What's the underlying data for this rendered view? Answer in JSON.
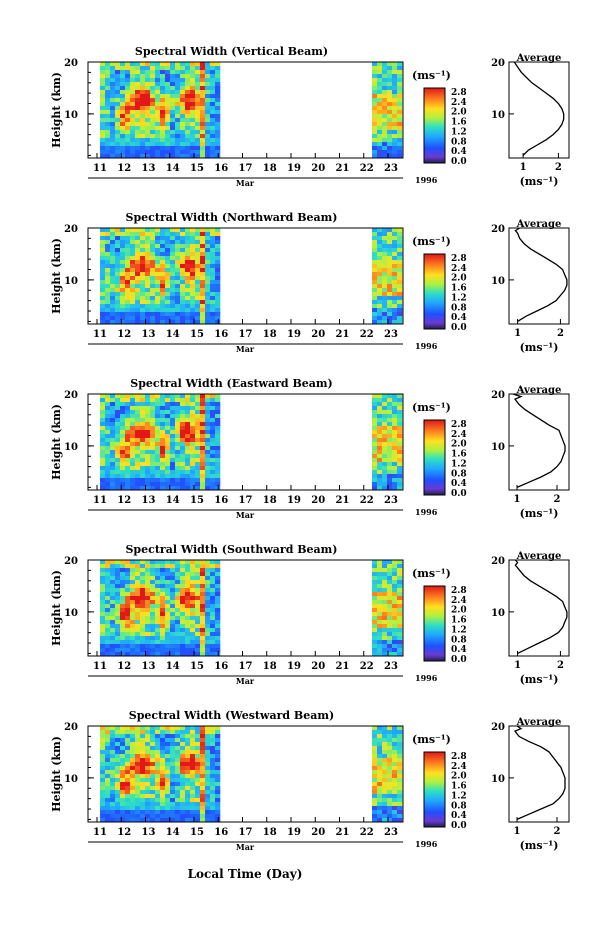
{
  "figure": {
    "xlabel": "Local Time (Day)",
    "month_label": "Mar",
    "year_label": "1996"
  },
  "chart_data": [
    {
      "type": "heatmap",
      "title": "Spectral Width (Vertical Beam)",
      "ylabel": "Height (km)",
      "x_ticks": [
        "11",
        "12",
        "13",
        "14",
        "15",
        "16",
        "17",
        "18",
        "19",
        "20",
        "21",
        "22",
        "23"
      ],
      "y_ticks": [
        "20",
        "10"
      ],
      "colorbar_label": "(ms⁻¹)",
      "colorbar_ticks": [
        "2.8",
        "2.4",
        "2.0",
        "1.6",
        "1.2",
        "0.8",
        "0.4",
        "0.0"
      ],
      "average": {
        "title": "Average",
        "xlabel": "(ms⁻¹)",
        "x_ticks": [
          "1",
          "2"
        ],
        "y_ticks": [
          "20",
          "10"
        ],
        "xlim": [
          0.6,
          2.3
        ],
        "ylim": [
          1.5,
          20
        ],
        "profile": [
          [
            1.0,
            2
          ],
          [
            1.15,
            3
          ],
          [
            1.4,
            4
          ],
          [
            1.65,
            5
          ],
          [
            1.85,
            6
          ],
          [
            2.0,
            7
          ],
          [
            2.1,
            8
          ],
          [
            2.15,
            9
          ],
          [
            2.15,
            10
          ],
          [
            2.1,
            11
          ],
          [
            2.0,
            12
          ],
          [
            1.85,
            13
          ],
          [
            1.65,
            14
          ],
          [
            1.45,
            15
          ],
          [
            1.25,
            16
          ],
          [
            1.1,
            17
          ],
          [
            0.95,
            18
          ],
          [
            0.85,
            19
          ],
          [
            0.75,
            20
          ]
        ]
      }
    },
    {
      "type": "heatmap",
      "title": "Spectral Width (Northward Beam)",
      "ylabel": "Height (km)",
      "x_ticks": [
        "11",
        "12",
        "13",
        "14",
        "15",
        "16",
        "17",
        "18",
        "19",
        "20",
        "21",
        "22",
        "23"
      ],
      "y_ticks": [
        "20",
        "10"
      ],
      "colorbar_label": "(ms⁻¹)",
      "colorbar_ticks": [
        "2.8",
        "2.4",
        "2.0",
        "1.6",
        "1.2",
        "0.8",
        "0.4",
        "0.0"
      ],
      "average": {
        "title": "Average",
        "xlabel": "(ms⁻¹)",
        "x_ticks": [
          "1",
          "2"
        ],
        "y_ticks": [
          "20",
          "10"
        ],
        "xlim": [
          0.8,
          2.2
        ],
        "ylim": [
          1.5,
          20
        ],
        "profile": [
          [
            1.0,
            2
          ],
          [
            1.2,
            3
          ],
          [
            1.45,
            4
          ],
          [
            1.7,
            5
          ],
          [
            1.9,
            6
          ],
          [
            2.0,
            7
          ],
          [
            2.1,
            8
          ],
          [
            2.15,
            9
          ],
          [
            2.15,
            10
          ],
          [
            2.1,
            11
          ],
          [
            2.05,
            12
          ],
          [
            1.9,
            13
          ],
          [
            1.7,
            14
          ],
          [
            1.5,
            15
          ],
          [
            1.3,
            16
          ],
          [
            1.15,
            17
          ],
          [
            1.05,
            18
          ],
          [
            1.0,
            19
          ],
          [
            0.95,
            19.5
          ],
          [
            1.05,
            20
          ]
        ]
      }
    },
    {
      "type": "heatmap",
      "title": "Spectral Width (Eastward Beam)",
      "ylabel": "Height (km)",
      "x_ticks": [
        "11",
        "12",
        "13",
        "14",
        "15",
        "16",
        "17",
        "18",
        "19",
        "20",
        "21",
        "22",
        "23"
      ],
      "y_ticks": [
        "20",
        "10"
      ],
      "colorbar_label": "(ms⁻¹)",
      "colorbar_ticks": [
        "2.8",
        "2.4",
        "2.0",
        "1.6",
        "1.2",
        "0.8",
        "0.4",
        "0.0"
      ],
      "average": {
        "title": "Average",
        "xlabel": "(ms⁻¹)",
        "x_ticks": [
          "1",
          "2"
        ],
        "y_ticks": [
          "20",
          "10"
        ],
        "xlim": [
          0.8,
          2.3
        ],
        "ylim": [
          1.5,
          20
        ],
        "profile": [
          [
            1.0,
            2
          ],
          [
            1.3,
            3
          ],
          [
            1.6,
            4
          ],
          [
            1.85,
            5
          ],
          [
            2.0,
            6
          ],
          [
            2.1,
            7
          ],
          [
            2.15,
            8
          ],
          [
            2.2,
            9
          ],
          [
            2.2,
            10
          ],
          [
            2.15,
            11
          ],
          [
            2.1,
            12
          ],
          [
            2.05,
            13
          ],
          [
            1.8,
            14
          ],
          [
            1.6,
            15
          ],
          [
            1.4,
            16
          ],
          [
            1.2,
            17
          ],
          [
            1.05,
            18
          ],
          [
            0.95,
            19
          ],
          [
            1.1,
            19.5
          ],
          [
            0.9,
            20
          ]
        ]
      }
    },
    {
      "type": "heatmap",
      "title": "Spectral Width (Southward Beam)",
      "ylabel": "Height (km)",
      "x_ticks": [
        "11",
        "12",
        "13",
        "14",
        "15",
        "16",
        "17",
        "18",
        "19",
        "20",
        "21",
        "22",
        "23"
      ],
      "y_ticks": [
        "20",
        "10"
      ],
      "colorbar_label": "(ms⁻¹)",
      "colorbar_ticks": [
        "2.8",
        "2.4",
        "2.0",
        "1.6",
        "1.2",
        "0.8",
        "0.4",
        "0.0"
      ],
      "average": {
        "title": "Average",
        "xlabel": "(ms⁻¹)",
        "x_ticks": [
          "1",
          "2"
        ],
        "y_ticks": [
          "20",
          "10"
        ],
        "xlim": [
          0.8,
          2.2
        ],
        "ylim": [
          1.5,
          20
        ],
        "profile": [
          [
            1.0,
            2
          ],
          [
            1.25,
            3
          ],
          [
            1.5,
            4
          ],
          [
            1.75,
            5
          ],
          [
            1.95,
            6
          ],
          [
            2.05,
            7
          ],
          [
            2.1,
            8
          ],
          [
            2.15,
            9
          ],
          [
            2.15,
            10
          ],
          [
            2.1,
            11
          ],
          [
            2.05,
            12
          ],
          [
            1.9,
            13
          ],
          [
            1.7,
            14
          ],
          [
            1.5,
            15
          ],
          [
            1.3,
            16
          ],
          [
            1.15,
            17
          ],
          [
            1.05,
            18
          ],
          [
            0.95,
            19
          ],
          [
            1.0,
            19.5
          ],
          [
            0.95,
            20
          ]
        ]
      }
    },
    {
      "type": "heatmap",
      "title": "Spectral Width (Westward Beam)",
      "ylabel": "Height (km)",
      "x_ticks": [
        "11",
        "12",
        "13",
        "14",
        "15",
        "16",
        "17",
        "18",
        "19",
        "20",
        "21",
        "22",
        "23"
      ],
      "y_ticks": [
        "20",
        "10"
      ],
      "colorbar_label": "(ms⁻¹)",
      "colorbar_ticks": [
        "2.8",
        "2.4",
        "2.0",
        "1.6",
        "1.2",
        "0.8",
        "0.4",
        "0.0"
      ],
      "average": {
        "title": "Average",
        "xlabel": "(ms⁻¹)",
        "x_ticks": [
          "1",
          "2"
        ],
        "y_ticks": [
          "20",
          "10"
        ],
        "xlim": [
          0.8,
          2.3
        ],
        "ylim": [
          1.5,
          20
        ],
        "profile": [
          [
            1.0,
            2
          ],
          [
            1.3,
            3
          ],
          [
            1.6,
            4
          ],
          [
            1.9,
            5
          ],
          [
            2.05,
            6
          ],
          [
            2.15,
            7
          ],
          [
            2.2,
            8
          ],
          [
            2.2,
            9
          ],
          [
            2.2,
            10
          ],
          [
            2.15,
            11
          ],
          [
            2.1,
            12
          ],
          [
            2.0,
            13
          ],
          [
            1.9,
            14
          ],
          [
            1.8,
            15
          ],
          [
            1.6,
            16
          ],
          [
            1.3,
            17
          ],
          [
            1.05,
            18
          ],
          [
            0.95,
            19
          ],
          [
            1.1,
            19.5
          ],
          [
            1.0,
            20
          ]
        ]
      }
    }
  ]
}
